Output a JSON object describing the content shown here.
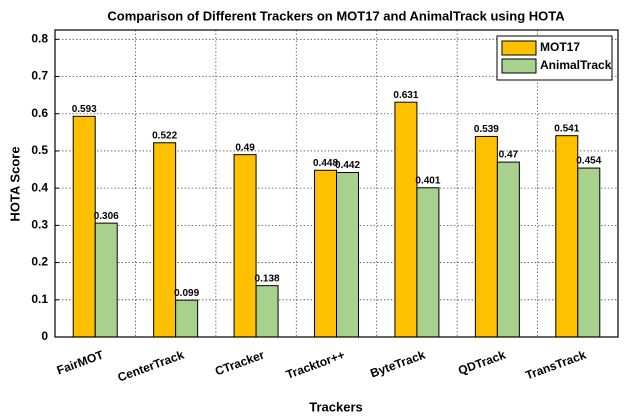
{
  "chart_data": {
    "type": "bar",
    "title": "Comparison of Different Trackers on MOT17 and AnimalTrack using HOTA",
    "x_label": "Trackers",
    "y_label": "HOTA Score",
    "categories": [
      "FairMOT",
      "CenterTrack",
      "CTracker",
      "Tracktor++",
      "ByteTrack",
      "QDTrack",
      "TransTrack"
    ],
    "series": [
      {
        "name": "MOT17",
        "color": "#ffc000",
        "values": [
          0.593,
          0.522,
          0.49,
          0.448,
          0.631,
          0.539,
          0.541
        ]
      },
      {
        "name": "AnimalTrack",
        "color": "#a9d18e",
        "values": [
          0.306,
          0.099,
          0.138,
          0.442,
          0.401,
          0.47,
          0.454
        ]
      }
    ],
    "ylim": [
      0,
      0.825
    ],
    "yticks": [
      0,
      0.1,
      0.2,
      0.3,
      0.4,
      0.5,
      0.6,
      0.7,
      0.8
    ],
    "grid": true,
    "legend": "top-right"
  }
}
